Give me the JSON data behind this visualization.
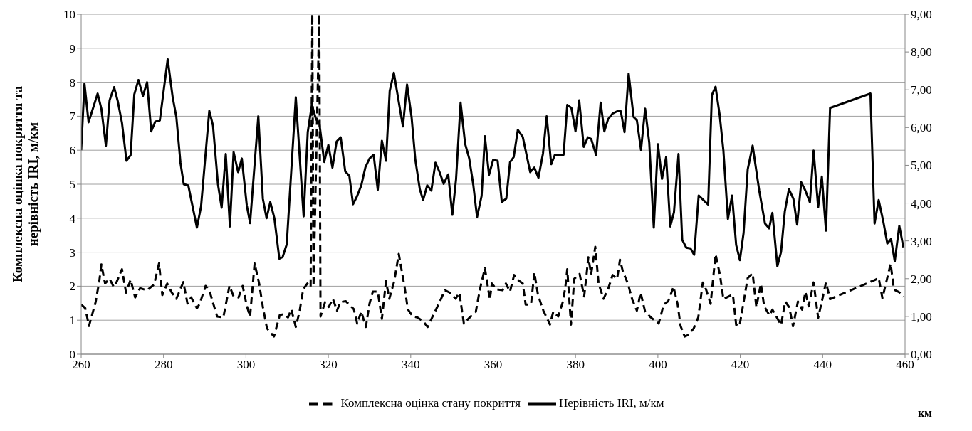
{
  "chart_data": {
    "type": "line",
    "ylabel": "Комплексна оцінка покриття та нерівність IRI, м/км",
    "xlabel": "км",
    "xlim": [
      260,
      460
    ],
    "xticks": [
      260,
      280,
      300,
      320,
      340,
      360,
      380,
      400,
      420,
      440,
      460
    ],
    "ylim": [
      0,
      10
    ],
    "yticks": [
      0,
      1,
      2,
      3,
      4,
      5,
      6,
      7,
      8,
      9,
      10
    ],
    "y2lim": [
      0,
      9
    ],
    "y2ticks": [
      {
        "value": 0,
        "label": "0,00"
      },
      {
        "value": 1,
        "label": "1,00"
      },
      {
        "value": 2,
        "label": "2,00"
      },
      {
        "value": 3,
        "label": "3,00"
      },
      {
        "value": 4,
        "label": "4,00"
      },
      {
        "value": 5,
        "label": "5,00"
      },
      {
        "value": 6,
        "label": "6,00"
      },
      {
        "value": 7,
        "label": "7,00"
      },
      {
        "value": 8,
        "label": "8,00"
      },
      {
        "value": 9,
        "label": "9,00"
      }
    ],
    "grid": "y",
    "legend": "bottom",
    "marker": "none",
    "series": [
      {
        "name": "Комплексна оцінка стану покриття",
        "color": "#000000",
        "line_style": "dashed",
        "axis": "y",
        "x": [
          260,
          261,
          261.9,
          263.5,
          264.4,
          264.9,
          265.8,
          266.9,
          267.9,
          268.6,
          269.9,
          270.9,
          272,
          273.1,
          274.3,
          276,
          277.7,
          278.9,
          279.7,
          280.9,
          282,
          283.1,
          284.8,
          285.8,
          286.7,
          288.1,
          288.8,
          290.2,
          291.1,
          293,
          294.5,
          296,
          297,
          298.2,
          299.2,
          300.2,
          301,
          302.1,
          303.2,
          304.1,
          305.1,
          306.8,
          308.2,
          309.2,
          310.2,
          311,
          312.1,
          313,
          313.9,
          314.9,
          315.7,
          316.1,
          316.4,
          317.8,
          318.1,
          319.2,
          320.1,
          321.1,
          322.1,
          322.9,
          324.2,
          325.1,
          326.2,
          327,
          328,
          329.1,
          330,
          330.8,
          332,
          333,
          334,
          334.8,
          336,
          337.1,
          338.5,
          339.3,
          340.5,
          341.6,
          343,
          344.1,
          345.6,
          347,
          348.3,
          349.5,
          350.9,
          351.8,
          352.9,
          354.3,
          355.8,
          356.8,
          358,
          358.9,
          359.2,
          359.7,
          360.8,
          362.3,
          363.1,
          364.1,
          365.1,
          365.9,
          367.2,
          367.9,
          369.2,
          370,
          370.9,
          372.2,
          373.8,
          374.6,
          375.8,
          376.9,
          377.5,
          378,
          378.9,
          379.7,
          381,
          382.1,
          382.7,
          383.1,
          383.8,
          384.8,
          385.6,
          386.8,
          387.9,
          389,
          390.1,
          390.8,
          391.5,
          392.7,
          393.8,
          394.9,
          395.8,
          396.9,
          398.3,
          400.2,
          401.4,
          402.5,
          403.8,
          404.8,
          405.5,
          406.5,
          407.3,
          408.7,
          409.8,
          410.9,
          411.7,
          412.8,
          414,
          415.1,
          415.9,
          418.2,
          419,
          419.8,
          421.8,
          423,
          423.9,
          425,
          425.8,
          427.1,
          427.8,
          429.9,
          430.9,
          431.9,
          432.8,
          434,
          435,
          435.8,
          436.6,
          437.8,
          438.9,
          439.8,
          440.8,
          441.8,
          452.6,
          453.6,
          454.5,
          456.5,
          457.3,
          458.5,
          459.6
        ],
        "values": [
          1.46,
          1.35,
          0.83,
          1.53,
          2.15,
          2.64,
          2.08,
          2.22,
          1.98,
          2.12,
          2.5,
          1.81,
          2.19,
          1.67,
          1.94,
          1.88,
          2.05,
          2.67,
          1.74,
          2.08,
          1.81,
          1.63,
          2.12,
          1.49,
          1.67,
          1.35,
          1.49,
          2.01,
          1.88,
          1.11,
          1.08,
          2.01,
          1.7,
          1.67,
          2.01,
          1.42,
          1.11,
          2.67,
          2.08,
          1.39,
          0.76,
          0.52,
          1.15,
          1.18,
          1.08,
          1.32,
          0.8,
          1.25,
          1.91,
          2.08,
          1.98,
          10,
          2,
          10,
          1.11,
          1.53,
          1.39,
          1.63,
          1.28,
          1.53,
          1.56,
          1.46,
          1.32,
          0.9,
          1.25,
          0.8,
          1.49,
          1.84,
          1.84,
          1.04,
          2.15,
          1.63,
          2.15,
          2.95,
          1.98,
          1.32,
          1.11,
          1.08,
          0.97,
          0.8,
          1.18,
          1.53,
          1.88,
          1.81,
          1.63,
          1.81,
          0.9,
          1.08,
          1.25,
          1.91,
          2.53,
          1.84,
          1.6,
          2.08,
          1.91,
          1.88,
          2.08,
          1.84,
          2.33,
          2.19,
          2.08,
          1.46,
          1.46,
          2.4,
          1.74,
          1.28,
          0.87,
          1.25,
          1.11,
          1.53,
          1.94,
          2.5,
          0.87,
          2.22,
          2.36,
          1.7,
          2.36,
          2.85,
          2.36,
          3.16,
          2.08,
          1.63,
          1.91,
          2.33,
          2.22,
          2.78,
          2.43,
          2.08,
          1.6,
          1.28,
          1.81,
          1.25,
          1.08,
          0.9,
          1.46,
          1.56,
          1.98,
          1.46,
          0.83,
          0.52,
          0.56,
          0.76,
          1.08,
          2.11,
          1.9,
          1.48,
          2.94,
          2.31,
          1.62,
          1.76,
          0.86,
          0.82,
          2.24,
          2.38,
          1.38,
          2.07,
          1.41,
          1.14,
          1.31,
          0.86,
          1.55,
          1.38,
          0.82,
          1.55,
          1.31,
          1.83,
          1.41,
          2.11,
          1.07,
          1.55,
          2.11,
          1.62,
          2.18,
          2.24,
          1.65,
          2.66,
          1.9,
          1.83,
          1.69
        ]
      },
      {
        "name": "Нерівність IRI, м/км",
        "color": "#000000",
        "line_style": "solid",
        "axis": "y2",
        "x": [
          260,
          260.8,
          261.8,
          264,
          264.9,
          266,
          266.9,
          268,
          268.9,
          269.9,
          271,
          272,
          272.9,
          273.9,
          275,
          276,
          277,
          278,
          279.1,
          281,
          282.2,
          283.1,
          284.1,
          284.9,
          286,
          288.1,
          289.1,
          291.1,
          292,
          293.2,
          294.1,
          295.1,
          296.1,
          297,
          298.1,
          299,
          300.2,
          301,
          303,
          304.1,
          305,
          305.9,
          306.9,
          308.1,
          308.9,
          309.9,
          312.1,
          314,
          315,
          316,
          317,
          317.8,
          319,
          320,
          321,
          322,
          323,
          324.1,
          325.1,
          326,
          327,
          328,
          329,
          330,
          331,
          332,
          333,
          334,
          334.9,
          335.9,
          338.1,
          339.1,
          340.2,
          341.1,
          342.2,
          343,
          344,
          345,
          346,
          347,
          348,
          349.1,
          350.1,
          351,
          352.1,
          353.2,
          354.2,
          355.2,
          356.1,
          357.2,
          358,
          359,
          360,
          361.1,
          362.1,
          363.2,
          364.1,
          365,
          366,
          367.2,
          369,
          370,
          371,
          372.1,
          373,
          374.1,
          375,
          377.1,
          378,
          379,
          380,
          380.9,
          382,
          383,
          383.8,
          385,
          386.1,
          387,
          387.9,
          389,
          390.1,
          391,
          391.9,
          392.9,
          394.1,
          394.9,
          395.9,
          396.9,
          397.9,
          399,
          400,
          401,
          402,
          403,
          403.9,
          405,
          405.9,
          406.9,
          407.9,
          408.8,
          409.9,
          412.2,
          413.1,
          414,
          415,
          415.9,
          417,
          418,
          419,
          419.9,
          420.8,
          421.8,
          423,
          424.6,
          426,
          427,
          427.8,
          429,
          429.9,
          430.8,
          431.8,
          432.9,
          433.8,
          434.8,
          435.8,
          436.9,
          437.8,
          438.9,
          439.8,
          440.8,
          441.8,
          451.6,
          452.6,
          453.6,
          454.7,
          455.7,
          456.6,
          457.5,
          458.6,
          459.6
        ],
        "values": [
          5.4,
          7.16,
          6.14,
          6.9,
          6.5,
          5.52,
          6.72,
          7.07,
          6.69,
          6.13,
          5.12,
          5.27,
          6.88,
          7.26,
          6.84,
          7.2,
          5.9,
          6.16,
          6.19,
          7.81,
          6.81,
          6.28,
          5.07,
          4.5,
          4.47,
          3.35,
          3.91,
          6.44,
          6.05,
          4.5,
          3.88,
          5.3,
          3.38,
          5.35,
          4.82,
          5.18,
          3.94,
          3.47,
          6.3,
          4.12,
          3.6,
          4.03,
          3.6,
          2.53,
          2.57,
          2.91,
          6.8,
          3.65,
          5.88,
          6.6,
          6.22,
          6.13,
          5.09,
          5.54,
          4.94,
          5.63,
          5.74,
          4.84,
          4.72,
          3.97,
          4.19,
          4.47,
          4.95,
          5.18,
          5.28,
          4.35,
          5.65,
          5.12,
          6.97,
          7.45,
          6.03,
          7.14,
          6.28,
          5.16,
          4.37,
          4.08,
          4.47,
          4.33,
          5.07,
          4.82,
          4.51,
          4.76,
          3.69,
          4.63,
          6.66,
          5.57,
          5.18,
          4.47,
          3.63,
          4.19,
          5.77,
          4.75,
          5.14,
          5.12,
          4.03,
          4.12,
          5.08,
          5.22,
          5.94,
          5.75,
          4.82,
          4.94,
          4.67,
          5.31,
          6.3,
          5.03,
          5.28,
          5.28,
          6.6,
          6.52,
          5.9,
          6.72,
          5.49,
          5.74,
          5.7,
          5.27,
          6.66,
          5.9,
          6.22,
          6.37,
          6.43,
          6.43,
          5.88,
          7.43,
          6.28,
          6.19,
          5.41,
          6.5,
          5.6,
          3.35,
          5.56,
          4.64,
          5.22,
          3.38,
          3.76,
          5.3,
          3.03,
          2.82,
          2.8,
          2.63,
          4.2,
          3.96,
          6.86,
          7.08,
          6.33,
          5.39,
          3.58,
          4.2,
          2.89,
          2.49,
          3.21,
          4.89,
          5.52,
          4.33,
          3.46,
          3.33,
          3.74,
          2.33,
          2.71,
          3.77,
          4.37,
          4.11,
          3.43,
          4.55,
          4.33,
          4.02,
          5.39,
          3.89,
          4.7,
          3.27,
          6.52,
          6.9,
          3.46,
          4.08,
          3.52,
          2.93,
          3.05,
          2.46,
          3.4,
          2.83
        ]
      }
    ]
  }
}
